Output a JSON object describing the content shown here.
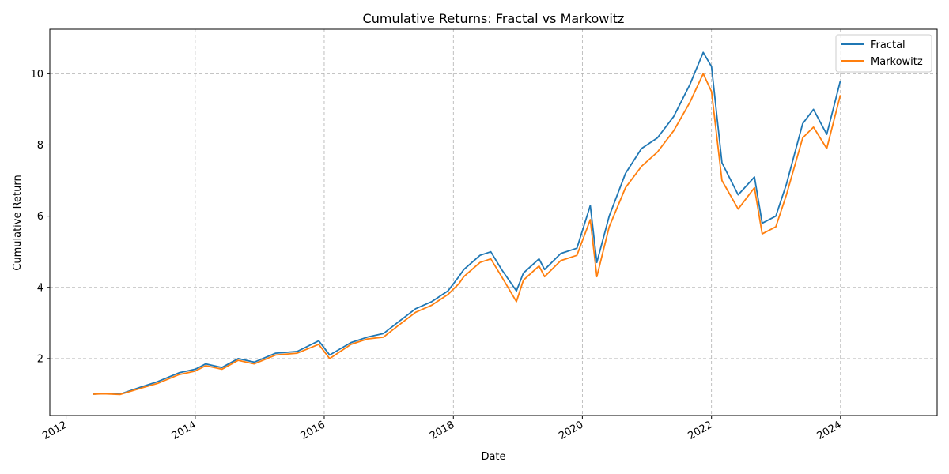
{
  "chart_data": {
    "type": "line",
    "title": "Cumulative Returns: Fractal vs Markowitz",
    "xlabel": "Date",
    "ylabel": "Cumulative Return",
    "xlim": [
      "2011-10-01",
      "2025-07-01"
    ],
    "ylim": [
      0.4,
      11.25
    ],
    "grid": true,
    "legend": "top-right",
    "x_ticks": [
      "2012",
      "2014",
      "2016",
      "2018",
      "2020",
      "2022",
      "2024"
    ],
    "y_ticks": [
      2,
      4,
      6,
      8,
      10
    ],
    "series": [
      {
        "name": "Fractal",
        "color": "#1f77b4",
        "x": [
          "2012-06-01",
          "2012-08-01",
          "2012-11-01",
          "2013-03-01",
          "2013-06-01",
          "2013-10-01",
          "2014-01-01",
          "2014-03-01",
          "2014-06-01",
          "2014-09-01",
          "2014-12-01",
          "2015-04-01",
          "2015-08-01",
          "2015-12-01",
          "2016-02-01",
          "2016-06-01",
          "2016-09-01",
          "2016-12-01",
          "2017-03-01",
          "2017-06-01",
          "2017-09-01",
          "2017-12-01",
          "2018-02-01",
          "2018-03-01",
          "2018-06-01",
          "2018-08-01",
          "2018-10-01",
          "2018-12-24",
          "2019-02-01",
          "2019-05-01",
          "2019-06-01",
          "2019-09-01",
          "2019-12-01",
          "2020-02-15",
          "2020-03-23",
          "2020-06-01",
          "2020-09-01",
          "2020-12-01",
          "2021-03-01",
          "2021-06-01",
          "2021-09-01",
          "2021-11-15",
          "2022-01-01",
          "2022-03-01",
          "2022-06-01",
          "2022-09-01",
          "2022-10-15",
          "2022-12-31",
          "2023-03-01",
          "2023-06-01",
          "2023-08-01",
          "2023-10-15",
          "2023-12-31"
        ],
        "values": [
          1.0,
          1.02,
          1.0,
          1.2,
          1.35,
          1.6,
          1.7,
          1.85,
          1.75,
          2.0,
          1.9,
          2.15,
          2.2,
          2.5,
          2.1,
          2.45,
          2.6,
          2.7,
          3.05,
          3.4,
          3.6,
          3.9,
          4.3,
          4.5,
          4.9,
          5.0,
          4.5,
          3.9,
          4.4,
          4.8,
          4.5,
          4.95,
          5.1,
          6.3,
          4.7,
          6.0,
          7.2,
          7.9,
          8.2,
          8.8,
          9.7,
          10.6,
          10.2,
          7.5,
          6.6,
          7.1,
          5.8,
          6.0,
          6.9,
          8.6,
          9.0,
          8.3,
          9.8
        ]
      },
      {
        "name": "Markowitz",
        "color": "#ff7f0e",
        "x": [
          "2012-06-01",
          "2012-08-01",
          "2012-11-01",
          "2013-03-01",
          "2013-06-01",
          "2013-10-01",
          "2014-01-01",
          "2014-03-01",
          "2014-06-01",
          "2014-09-01",
          "2014-12-01",
          "2015-04-01",
          "2015-08-01",
          "2015-12-01",
          "2016-02-01",
          "2016-06-01",
          "2016-09-01",
          "2016-12-01",
          "2017-03-01",
          "2017-06-01",
          "2017-09-01",
          "2017-12-01",
          "2018-02-01",
          "2018-03-01",
          "2018-06-01",
          "2018-08-01",
          "2018-10-01",
          "2018-12-24",
          "2019-02-01",
          "2019-05-01",
          "2019-06-01",
          "2019-09-01",
          "2019-12-01",
          "2020-02-15",
          "2020-03-23",
          "2020-06-01",
          "2020-09-01",
          "2020-12-01",
          "2021-03-01",
          "2021-06-01",
          "2021-09-01",
          "2021-11-15",
          "2022-01-01",
          "2022-03-01",
          "2022-06-01",
          "2022-09-01",
          "2022-10-15",
          "2022-12-31",
          "2023-03-01",
          "2023-06-01",
          "2023-08-01",
          "2023-10-15",
          "2023-12-31"
        ],
        "values": [
          1.0,
          1.01,
          0.99,
          1.17,
          1.3,
          1.55,
          1.65,
          1.8,
          1.7,
          1.95,
          1.85,
          2.1,
          2.15,
          2.4,
          2.0,
          2.4,
          2.55,
          2.6,
          2.95,
          3.3,
          3.5,
          3.8,
          4.1,
          4.3,
          4.7,
          4.8,
          4.3,
          3.6,
          4.2,
          4.6,
          4.3,
          4.75,
          4.9,
          5.9,
          4.3,
          5.7,
          6.8,
          7.4,
          7.8,
          8.4,
          9.2,
          10.0,
          9.5,
          7.0,
          6.2,
          6.8,
          5.5,
          5.7,
          6.6,
          8.2,
          8.5,
          7.9,
          9.4
        ]
      }
    ]
  }
}
